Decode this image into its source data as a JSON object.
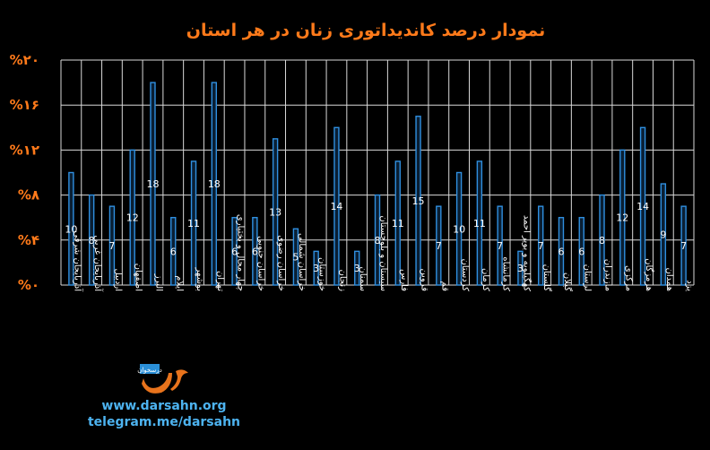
{
  "chart_data": {
    "type": "bar",
    "title": "نمودار درصد کاندیداتوری زنان در هر استان",
    "yticks": [
      "%۰",
      "%۴",
      "%۸",
      "%۱۲",
      "%۱۶",
      "%۲۰"
    ],
    "ylim": [
      0,
      20
    ],
    "grid": true,
    "categories": [
      "آذربایجان شرقی",
      "آذربایجان غربی",
      "اردبیل",
      "اصفهان",
      "البرز",
      "ایلام",
      "بوشهر",
      "تهران",
      "چهار محال و بختیاری",
      "خراسان جنوبی",
      "خراسان رضوی",
      "خراسان شمالی",
      "خوزستان",
      "زنجان",
      "سمنان",
      "سیستان و بلوچستان",
      "فارس",
      "قزوین",
      "قم",
      "کردستان",
      "کرمان",
      "کرمانشاه",
      "کهگیلویه و بویر احمد",
      "گلستان",
      "گیلان",
      "لرستان",
      "مازندران",
      "مرکزی",
      "هرمزگان",
      "همدان",
      "یزد"
    ],
    "values": [
      10,
      8,
      7,
      12,
      18,
      6,
      11,
      18,
      6,
      6,
      13,
      5,
      3,
      14,
      3,
      8,
      11,
      15,
      7,
      10,
      11,
      7,
      3,
      7,
      6,
      6,
      8,
      12,
      14,
      9,
      7
    ],
    "colors": {
      "bar_fill": "#0a1f33",
      "bar_stroke": "#2f8fe0",
      "grid": "#d9d9d9",
      "title": "#ff7a1a",
      "ytick": "#ff7a1a"
    }
  },
  "branding": {
    "logo_text": "درسخوان",
    "logo_icon": "darsahn-logo-icon",
    "website": "www.darsahn.org",
    "telegram": "telegram.me/darsahn"
  }
}
